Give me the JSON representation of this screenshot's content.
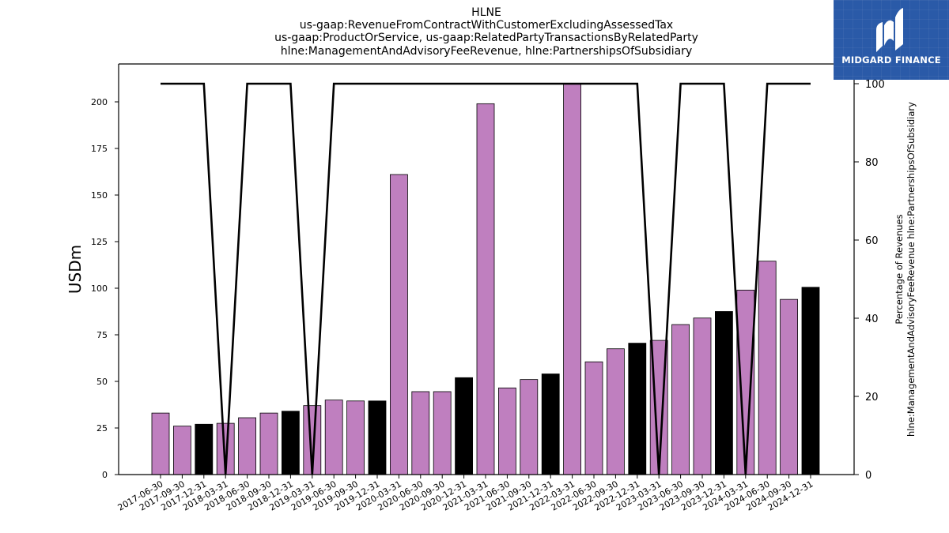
{
  "chart_data": {
    "type": "bar",
    "title": [
      "HLNE",
      "us-gaap:RevenueFromContractWithCustomerExcludingAssessedTax",
      "us-gaap:ProductOrService, us-gaap:RelatedPartyTransactionsByRelatedParty",
      "hlne:ManagementAndAdvisoryFeeRevenue, hlne:PartnershipsOfSubsidiary"
    ],
    "ylabel": "USDm",
    "y2label": [
      "Percentage of Revenues",
      "hlne:ManagementAndAdvisoryFeeRevenue hlne:PartnershipsOfSubsidiary"
    ],
    "ylim": [
      0,
      220
    ],
    "y2lim": [
      0,
      100
    ],
    "yticks": [
      "0",
      "25",
      "50",
      "75",
      "100",
      "125",
      "150",
      "175",
      "200"
    ],
    "y2ticks": [
      "0",
      "20",
      "40",
      "60",
      "80",
      "100"
    ],
    "categories": [
      "2017-06-30",
      "2017-09-30",
      "2017-12-31",
      "2018-03-31",
      "2018-06-30",
      "2018-09-30",
      "2018-12-31",
      "2019-03-31",
      "2019-06-30",
      "2019-09-30",
      "2019-12-31",
      "2020-03-31",
      "2020-06-30",
      "2020-09-30",
      "2020-12-31",
      "2021-03-31",
      "2021-06-30",
      "2021-09-30",
      "2021-12-31",
      "2022-03-31",
      "2022-06-30",
      "2022-09-30",
      "2022-12-31",
      "2023-03-31",
      "2023-06-30",
      "2023-09-30",
      "2023-12-31",
      "2024-03-31",
      "2024-06-30",
      "2024-09-30",
      "2024-12-31"
    ],
    "series": [
      {
        "type": "bar",
        "values": [
          33,
          26,
          27,
          27.5,
          30.5,
          33,
          34,
          37,
          40,
          39.5,
          39.5,
          161,
          44.5,
          44.5,
          52,
          199,
          46.5,
          51,
          54,
          210,
          60.5,
          67.5,
          70.5,
          72,
          80.5,
          84,
          87.5,
          99,
          114.5,
          94,
          100.5
        ],
        "colors": [
          "#bf7fbf",
          "#bf7fbf",
          "#000000",
          "#bf7fbf",
          "#bf7fbf",
          "#bf7fbf",
          "#000000",
          "#bf7fbf",
          "#bf7fbf",
          "#bf7fbf",
          "#000000",
          "#bf7fbf",
          "#bf7fbf",
          "#bf7fbf",
          "#000000",
          "#bf7fbf",
          "#bf7fbf",
          "#bf7fbf",
          "#000000",
          "#bf7fbf",
          "#bf7fbf",
          "#bf7fbf",
          "#000000",
          "#bf7fbf",
          "#bf7fbf",
          "#bf7fbf",
          "#000000",
          "#bf7fbf",
          "#bf7fbf",
          "#bf7fbf",
          "#000000"
        ]
      },
      {
        "type": "line",
        "axis": "right",
        "color": "#000000",
        "values": [
          100,
          100,
          100,
          0,
          100,
          100,
          100,
          0,
          100,
          100,
          100,
          100,
          100,
          100,
          100,
          100,
          100,
          100,
          100,
          100,
          100,
          100,
          100,
          0,
          100,
          100,
          100,
          0,
          100,
          100,
          100
        ]
      }
    ],
    "grid": false,
    "legend": "none"
  },
  "logo": {
    "text": "MIDGARD FINANCE",
    "color": "#2a5aa8"
  }
}
